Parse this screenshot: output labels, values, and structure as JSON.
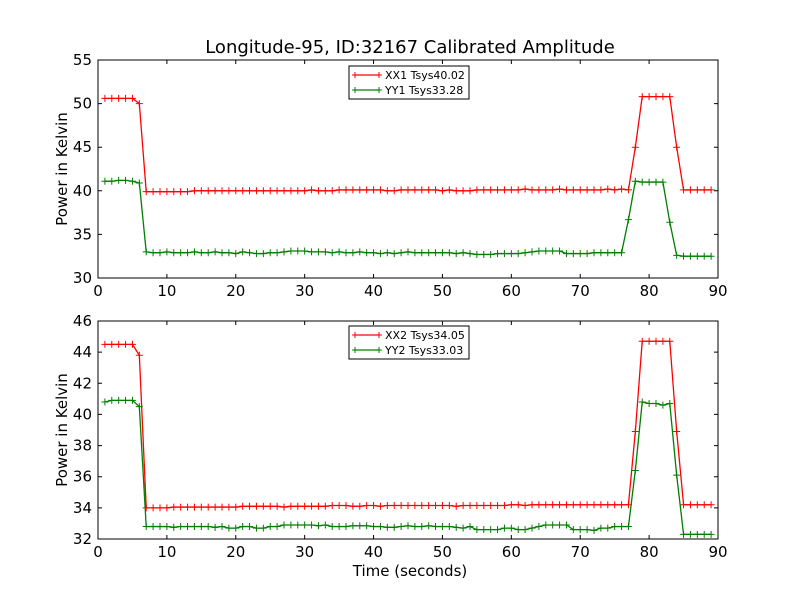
{
  "figure": {
    "title": "Longitude-95, ID:32167 Calibrated Amplitude",
    "xlabel": "Time (seconds)"
  },
  "colors": {
    "XX": "#ff0000",
    "YY": "#007f00",
    "axes": "#000000",
    "background": "#ffffff"
  },
  "chart_data": [
    {
      "type": "line",
      "title": "Longitude-95, ID:32167 Calibrated Amplitude",
      "xlabel": "",
      "ylabel": "Power in Kelvin",
      "xlim": [
        0,
        90
      ],
      "ylim": [
        30,
        55
      ],
      "xticks": [
        0,
        10,
        20,
        30,
        40,
        50,
        60,
        70,
        80,
        90
      ],
      "yticks": [
        30,
        35,
        40,
        45,
        50,
        55
      ],
      "grid": false,
      "legend_position": "top-center",
      "marker": "plus",
      "series": [
        {
          "name": "XX1 Tsys40.02",
          "color": "#ff0000",
          "x": [
            1,
            2,
            3,
            4,
            5,
            6,
            7,
            8,
            9,
            10,
            11,
            12,
            13,
            14,
            15,
            16,
            17,
            18,
            19,
            20,
            21,
            22,
            23,
            24,
            25,
            26,
            27,
            28,
            29,
            30,
            31,
            32,
            33,
            34,
            35,
            36,
            37,
            38,
            39,
            40,
            41,
            42,
            43,
            44,
            45,
            46,
            47,
            48,
            49,
            50,
            51,
            52,
            53,
            54,
            55,
            56,
            57,
            58,
            59,
            60,
            61,
            62,
            63,
            64,
            65,
            66,
            67,
            68,
            69,
            70,
            71,
            72,
            73,
            74,
            75,
            76,
            77,
            78,
            79,
            80,
            81,
            82,
            83,
            84,
            85,
            86,
            87,
            88,
            89
          ],
          "y": [
            50.6,
            50.6,
            50.6,
            50.6,
            50.6,
            50.0,
            39.9,
            39.9,
            39.9,
            39.9,
            39.9,
            39.9,
            39.9,
            40.0,
            40.0,
            40.0,
            40.0,
            40.0,
            40.0,
            40.0,
            40.0,
            40.0,
            40.0,
            40.0,
            40.0,
            40.0,
            40.0,
            40.0,
            40.0,
            40.0,
            40.1,
            40.0,
            40.0,
            40.0,
            40.1,
            40.1,
            40.1,
            40.1,
            40.1,
            40.1,
            40.1,
            40.0,
            40.0,
            40.1,
            40.1,
            40.1,
            40.1,
            40.1,
            40.1,
            40.0,
            40.1,
            40.0,
            40.0,
            40.0,
            40.1,
            40.1,
            40.1,
            40.1,
            40.1,
            40.1,
            40.1,
            40.2,
            40.1,
            40.1,
            40.1,
            40.1,
            40.2,
            40.1,
            40.1,
            40.1,
            40.1,
            40.1,
            40.1,
            40.2,
            40.1,
            40.2,
            40.1,
            45.0,
            50.8,
            50.8,
            50.8,
            50.8,
            50.8,
            45.0,
            40.1,
            40.1,
            40.1,
            40.1,
            40.1
          ]
        },
        {
          "name": "YY1 Tsys33.28",
          "color": "#007f00",
          "x": [
            1,
            2,
            3,
            4,
            5,
            6,
            7,
            8,
            9,
            10,
            11,
            12,
            13,
            14,
            15,
            16,
            17,
            18,
            19,
            20,
            21,
            22,
            23,
            24,
            25,
            26,
            27,
            28,
            29,
            30,
            31,
            32,
            33,
            34,
            35,
            36,
            37,
            38,
            39,
            40,
            41,
            42,
            43,
            44,
            45,
            46,
            47,
            48,
            49,
            50,
            51,
            52,
            53,
            54,
            55,
            56,
            57,
            58,
            59,
            60,
            61,
            62,
            63,
            64,
            65,
            66,
            67,
            68,
            69,
            70,
            71,
            72,
            73,
            74,
            75,
            76,
            77,
            78,
            79,
            80,
            81,
            82,
            83,
            84,
            85,
            86,
            87,
            88,
            89
          ],
          "y": [
            41.1,
            41.1,
            41.2,
            41.2,
            41.1,
            40.9,
            33.0,
            32.9,
            32.9,
            33.0,
            32.9,
            32.9,
            32.9,
            33.0,
            32.9,
            32.9,
            33.0,
            32.9,
            32.9,
            32.8,
            33.0,
            32.9,
            32.8,
            32.8,
            32.9,
            32.9,
            33.0,
            33.1,
            33.1,
            33.1,
            33.0,
            33.0,
            33.0,
            32.9,
            33.0,
            32.9,
            32.9,
            33.0,
            32.9,
            32.9,
            32.8,
            32.9,
            32.8,
            32.9,
            33.0,
            32.9,
            32.9,
            32.9,
            32.9,
            32.9,
            32.9,
            32.8,
            32.9,
            32.8,
            32.7,
            32.7,
            32.7,
            32.8,
            32.8,
            32.8,
            32.8,
            32.9,
            33.0,
            33.1,
            33.1,
            33.1,
            33.1,
            32.8,
            32.8,
            32.8,
            32.8,
            32.9,
            32.9,
            32.9,
            32.9,
            32.9,
            36.7,
            41.1,
            41.0,
            41.0,
            41.0,
            41.0,
            36.4,
            32.6,
            32.5,
            32.5,
            32.5,
            32.5,
            32.5
          ]
        }
      ]
    },
    {
      "type": "line",
      "title": "",
      "xlabel": "Time (seconds)",
      "ylabel": "Power in Kelvin",
      "xlim": [
        0,
        90
      ],
      "ylim": [
        32,
        46
      ],
      "xticks": [
        0,
        10,
        20,
        30,
        40,
        50,
        60,
        70,
        80,
        90
      ],
      "yticks": [
        32,
        34,
        36,
        38,
        40,
        42,
        44,
        46
      ],
      "grid": false,
      "legend_position": "top-center",
      "marker": "plus",
      "series": [
        {
          "name": "XX2 Tsys34.05",
          "color": "#ff0000",
          "x": [
            1,
            2,
            3,
            4,
            5,
            6,
            7,
            8,
            9,
            10,
            11,
            12,
            13,
            14,
            15,
            16,
            17,
            18,
            19,
            20,
            21,
            22,
            23,
            24,
            25,
            26,
            27,
            28,
            29,
            30,
            31,
            32,
            33,
            34,
            35,
            36,
            37,
            38,
            39,
            40,
            41,
            42,
            43,
            44,
            45,
            46,
            47,
            48,
            49,
            50,
            51,
            52,
            53,
            54,
            55,
            56,
            57,
            58,
            59,
            60,
            61,
            62,
            63,
            64,
            65,
            66,
            67,
            68,
            69,
            70,
            71,
            72,
            73,
            74,
            75,
            76,
            77,
            78,
            79,
            80,
            81,
            82,
            83,
            84,
            85,
            86,
            87,
            88,
            89
          ],
          "y": [
            44.5,
            44.5,
            44.5,
            44.5,
            44.5,
            43.8,
            34.0,
            34.0,
            34.0,
            34.0,
            34.05,
            34.05,
            34.05,
            34.05,
            34.05,
            34.05,
            34.05,
            34.05,
            34.05,
            34.05,
            34.1,
            34.1,
            34.1,
            34.1,
            34.1,
            34.1,
            34.05,
            34.1,
            34.1,
            34.1,
            34.1,
            34.1,
            34.1,
            34.15,
            34.15,
            34.15,
            34.1,
            34.1,
            34.15,
            34.15,
            34.1,
            34.15,
            34.15,
            34.15,
            34.15,
            34.15,
            34.15,
            34.15,
            34.15,
            34.15,
            34.15,
            34.1,
            34.15,
            34.15,
            34.15,
            34.15,
            34.15,
            34.15,
            34.15,
            34.2,
            34.2,
            34.15,
            34.2,
            34.2,
            34.2,
            34.2,
            34.2,
            34.2,
            34.2,
            34.2,
            34.2,
            34.2,
            34.2,
            34.2,
            34.2,
            34.2,
            34.2,
            38.9,
            44.7,
            44.7,
            44.7,
            44.7,
            44.7,
            38.9,
            34.2,
            34.2,
            34.2,
            34.2,
            34.2
          ]
        },
        {
          "name": "YY2 Tsys33.03",
          "color": "#007f00",
          "x": [
            1,
            2,
            3,
            4,
            5,
            6,
            7,
            8,
            9,
            10,
            11,
            12,
            13,
            14,
            15,
            16,
            17,
            18,
            19,
            20,
            21,
            22,
            23,
            24,
            25,
            26,
            27,
            28,
            29,
            30,
            31,
            32,
            33,
            34,
            35,
            36,
            37,
            38,
            39,
            40,
            41,
            42,
            43,
            44,
            45,
            46,
            47,
            48,
            49,
            50,
            51,
            52,
            53,
            54,
            55,
            56,
            57,
            58,
            59,
            60,
            61,
            62,
            63,
            64,
            65,
            66,
            67,
            68,
            69,
            70,
            71,
            72,
            73,
            74,
            75,
            76,
            77,
            78,
            79,
            80,
            81,
            82,
            83,
            84,
            85,
            86,
            87,
            88,
            89
          ],
          "y": [
            40.8,
            40.9,
            40.9,
            40.9,
            40.9,
            40.5,
            32.8,
            32.8,
            32.8,
            32.8,
            32.75,
            32.8,
            32.8,
            32.8,
            32.8,
            32.8,
            32.75,
            32.8,
            32.7,
            32.7,
            32.8,
            32.8,
            32.7,
            32.7,
            32.8,
            32.8,
            32.9,
            32.9,
            32.9,
            32.9,
            32.9,
            32.85,
            32.9,
            32.8,
            32.8,
            32.8,
            32.85,
            32.85,
            32.85,
            32.8,
            32.8,
            32.75,
            32.75,
            32.8,
            32.85,
            32.8,
            32.8,
            32.85,
            32.8,
            32.8,
            32.8,
            32.75,
            32.7,
            32.8,
            32.6,
            32.6,
            32.6,
            32.6,
            32.7,
            32.7,
            32.6,
            32.6,
            32.7,
            32.8,
            32.9,
            32.9,
            32.9,
            32.9,
            32.6,
            32.6,
            32.6,
            32.55,
            32.7,
            32.7,
            32.8,
            32.8,
            32.8,
            36.4,
            40.8,
            40.7,
            40.7,
            40.6,
            40.7,
            36.1,
            32.3,
            32.3,
            32.3,
            32.3,
            32.3
          ]
        }
      ]
    }
  ]
}
